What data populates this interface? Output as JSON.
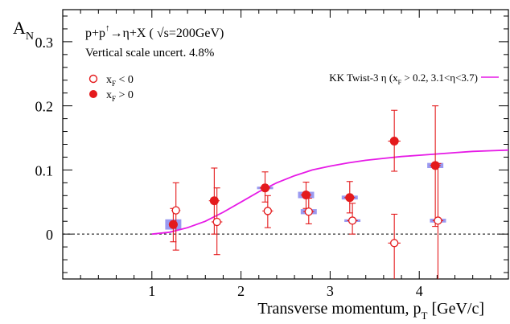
{
  "chart_data": {
    "type": "scatter",
    "ylabel_main": "A",
    "ylabel_sub": "N",
    "xlabel_main": "Transverse momentum, p",
    "xlabel_sub": "T",
    "xlabel_tail": " [GeV/c]",
    "xlim": [
      0,
      5
    ],
    "ylim": [
      -0.07,
      0.35
    ],
    "x_ticks": [
      1,
      2,
      3,
      4
    ],
    "y_ticks": [
      0,
      0.1,
      0.2,
      0.3
    ],
    "x_tick_labels": [
      "1",
      "2",
      "3",
      "4"
    ],
    "y_tick_labels": [
      "0",
      "0.1",
      "0.2",
      "0.3"
    ],
    "title_line1_a": "p+p",
    "title_line1_b": "→η+X ( ",
    "title_line1_c": "s=200GeV)",
    "title_line2": "Vertical scale uncert. 4.8%",
    "arrow_sup": "↑",
    "sqrt_sign": "√",
    "legend": [
      {
        "label_main": "x",
        "label_sub": "F",
        "label_tail": " < 0",
        "marker": "open-circle"
      },
      {
        "label_main": "x",
        "label_sub": "F",
        "label_tail": " > 0",
        "marker": "filled-circle"
      }
    ],
    "curve_label_a": "KK Twist-3 η (x",
    "curve_label_sub": "F",
    "curve_label_b": " > 0.2, 3.1<η<3.7)",
    "colors": {
      "points": "#e41a1c",
      "curve": "#e61ae6",
      "syst_box": "#8f8ff0",
      "axis": "#000000"
    },
    "series": [
      {
        "name": "x_F > 0",
        "marker": "filled",
        "points": [
          {
            "x": 1.24,
            "y": 0.015,
            "ylo": -0.012,
            "yhi": 0.04,
            "xerr": 0.05,
            "sys": 0.008
          },
          {
            "x": 1.7,
            "y": 0.052,
            "ylo": 0.0,
            "yhi": 0.103,
            "xerr": 0.06,
            "sys": 0.0
          },
          {
            "x": 2.27,
            "y": 0.072,
            "ylo": 0.05,
            "yhi": 0.097,
            "xerr": 0.06,
            "sys": 0.002
          },
          {
            "x": 2.73,
            "y": 0.061,
            "ylo": 0.04,
            "yhi": 0.081,
            "xerr": 0.06,
            "sys": 0.005
          },
          {
            "x": 3.22,
            "y": 0.057,
            "ylo": 0.033,
            "yhi": 0.082,
            "xerr": 0.06,
            "sys": 0.003
          },
          {
            "x": 3.72,
            "y": 0.145,
            "ylo": 0.098,
            "yhi": 0.193,
            "xerr": 0.07,
            "sys": 0.0
          },
          {
            "x": 4.18,
            "y": 0.107,
            "ylo": 0.012,
            "yhi": 0.2,
            "xerr": 0.06,
            "sys": 0.004
          }
        ]
      },
      {
        "name": "x_F < 0",
        "marker": "open",
        "points": [
          {
            "x": 1.27,
            "y": 0.037,
            "ylo": -0.025,
            "yhi": 0.08,
            "xerr": 0.05,
            "sys": 0.0
          },
          {
            "x": 1.73,
            "y": 0.019,
            "ylo": -0.032,
            "yhi": 0.072,
            "xerr": 0.06,
            "sys": 0.0
          },
          {
            "x": 2.3,
            "y": 0.036,
            "ylo": 0.01,
            "yhi": 0.06,
            "xerr": 0.06,
            "sys": 0.0
          },
          {
            "x": 2.76,
            "y": 0.035,
            "ylo": 0.016,
            "yhi": 0.056,
            "xerr": 0.06,
            "sys": 0.004
          },
          {
            "x": 3.25,
            "y": 0.021,
            "ylo": 0.0,
            "yhi": 0.048,
            "xerr": 0.06,
            "sys": 0.002
          },
          {
            "x": 3.72,
            "y": -0.014,
            "ylo": -0.07,
            "yhi": 0.031,
            "xerr": 0.07,
            "sys": 0.0
          },
          {
            "x": 4.21,
            "y": 0.021,
            "ylo": -0.07,
            "yhi": 0.11,
            "xerr": 0.06,
            "sys": 0.003
          }
        ]
      }
    ],
    "theory_curve": {
      "name": "KK Twist-3 η (x_F > 0.2, 3.1<η<3.7)",
      "x": [
        1.0,
        1.2,
        1.4,
        1.6,
        1.8,
        2.0,
        2.2,
        2.4,
        2.6,
        2.8,
        3.0,
        3.2,
        3.4,
        3.6,
        3.8,
        4.0,
        4.2,
        4.4,
        4.6,
        4.8,
        5.0
      ],
      "y": [
        0.0,
        0.003,
        0.01,
        0.02,
        0.034,
        0.05,
        0.066,
        0.08,
        0.091,
        0.1,
        0.106,
        0.111,
        0.115,
        0.118,
        0.121,
        0.123,
        0.125,
        0.127,
        0.129,
        0.13,
        0.131
      ]
    }
  }
}
